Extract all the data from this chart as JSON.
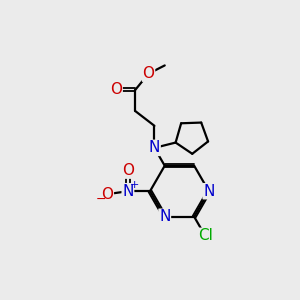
{
  "bg_color": "#ebebeb",
  "atom_colors": {
    "N": "#0000cc",
    "O": "#cc0000",
    "Cl": "#00aa00",
    "C": "#000000"
  },
  "bond_color": "#000000",
  "bond_lw": 1.6,
  "font_size": 11
}
